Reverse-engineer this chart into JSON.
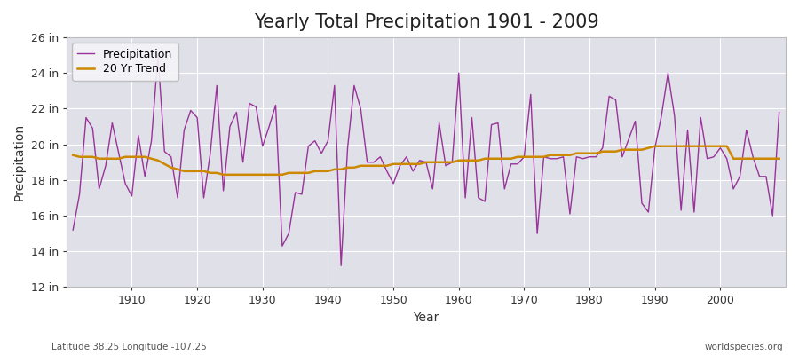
{
  "title": "Yearly Total Precipitation 1901 - 2009",
  "xlabel": "Year",
  "ylabel": "Precipitation",
  "subtitle": "Latitude 38.25 Longitude -107.25",
  "watermark": "worldspecies.org",
  "years": [
    1901,
    1902,
    1903,
    1904,
    1905,
    1906,
    1907,
    1908,
    1909,
    1910,
    1911,
    1912,
    1913,
    1914,
    1915,
    1916,
    1917,
    1918,
    1919,
    1920,
    1921,
    1922,
    1923,
    1924,
    1925,
    1926,
    1927,
    1928,
    1929,
    1930,
    1931,
    1932,
    1933,
    1934,
    1935,
    1936,
    1937,
    1938,
    1939,
    1940,
    1941,
    1942,
    1943,
    1944,
    1945,
    1946,
    1947,
    1948,
    1949,
    1950,
    1951,
    1952,
    1953,
    1954,
    1955,
    1956,
    1957,
    1958,
    1959,
    1960,
    1961,
    1962,
    1963,
    1964,
    1965,
    1966,
    1967,
    1968,
    1969,
    1970,
    1971,
    1972,
    1973,
    1974,
    1975,
    1976,
    1977,
    1978,
    1979,
    1980,
    1981,
    1982,
    1983,
    1984,
    1985,
    1986,
    1987,
    1988,
    1989,
    1990,
    1991,
    1992,
    1993,
    1994,
    1995,
    1996,
    1997,
    1998,
    1999,
    2000,
    2001,
    2002,
    2003,
    2004,
    2005,
    2006,
    2007,
    2008,
    2009
  ],
  "precip": [
    15.2,
    17.2,
    21.5,
    20.9,
    17.5,
    18.8,
    21.2,
    19.5,
    17.8,
    17.1,
    20.5,
    18.2,
    20.2,
    25.0,
    19.6,
    19.3,
    17.0,
    20.8,
    21.9,
    21.5,
    17.0,
    19.5,
    23.3,
    17.4,
    21.0,
    21.8,
    19.0,
    22.3,
    22.1,
    19.9,
    21.0,
    22.2,
    14.3,
    15.0,
    17.3,
    17.2,
    19.9,
    20.2,
    19.5,
    20.2,
    23.3,
    13.2,
    19.8,
    23.3,
    22.0,
    19.0,
    19.0,
    19.3,
    18.5,
    17.8,
    18.8,
    19.3,
    18.5,
    19.1,
    19.0,
    17.5,
    21.2,
    18.8,
    19.0,
    24.0,
    17.0,
    21.5,
    17.0,
    16.8,
    21.1,
    21.2,
    17.5,
    18.9,
    18.9,
    19.3,
    22.8,
    15.0,
    19.3,
    19.2,
    19.2,
    19.3,
    16.1,
    19.3,
    19.2,
    19.3,
    19.3,
    19.8,
    22.7,
    22.5,
    19.3,
    20.3,
    21.3,
    16.7,
    16.2,
    19.8,
    21.6,
    24.0,
    21.6,
    16.3,
    20.8,
    16.2,
    21.5,
    19.2,
    19.3,
    19.8,
    19.2,
    17.5,
    18.2,
    20.8,
    19.3,
    18.2,
    18.2,
    16.0,
    21.8
  ],
  "trend": [
    19.4,
    19.3,
    19.3,
    19.3,
    19.2,
    19.2,
    19.2,
    19.2,
    19.3,
    19.3,
    19.3,
    19.3,
    19.2,
    19.1,
    18.9,
    18.7,
    18.6,
    18.5,
    18.5,
    18.5,
    18.5,
    18.4,
    18.4,
    18.3,
    18.3,
    18.3,
    18.3,
    18.3,
    18.3,
    18.3,
    18.3,
    18.3,
    18.3,
    18.4,
    18.4,
    18.4,
    18.4,
    18.5,
    18.5,
    18.5,
    18.6,
    18.6,
    18.7,
    18.7,
    18.8,
    18.8,
    18.8,
    18.8,
    18.8,
    18.9,
    18.9,
    18.9,
    18.9,
    18.9,
    19.0,
    19.0,
    19.0,
    19.0,
    19.0,
    19.1,
    19.1,
    19.1,
    19.1,
    19.2,
    19.2,
    19.2,
    19.2,
    19.2,
    19.3,
    19.3,
    19.3,
    19.3,
    19.3,
    19.4,
    19.4,
    19.4,
    19.4,
    19.5,
    19.5,
    19.5,
    19.5,
    19.6,
    19.6,
    19.6,
    19.7,
    19.7,
    19.7,
    19.7,
    19.8,
    19.9,
    19.9,
    19.9,
    19.9,
    19.9,
    19.9,
    19.9,
    19.9,
    19.9,
    19.9,
    19.9,
    19.9,
    19.2,
    19.2,
    19.2,
    19.2,
    19.2,
    19.2,
    19.2,
    19.2
  ],
  "precip_color": "#993399",
  "trend_color": "#CC8800",
  "background_color": "#FFFFFF",
  "plot_bg_color": "#E0E0E8",
  "grid_color": "#FFFFFF",
  "ylim": [
    12,
    26
  ],
  "yticks": [
    12,
    14,
    16,
    18,
    20,
    22,
    24,
    26
  ],
  "xlim": [
    1900,
    2010
  ],
  "xticks": [
    1910,
    1920,
    1930,
    1940,
    1950,
    1960,
    1970,
    1980,
    1990,
    2000
  ],
  "title_fontsize": 15,
  "axis_label_fontsize": 10,
  "tick_fontsize": 9,
  "legend_fontsize": 9
}
